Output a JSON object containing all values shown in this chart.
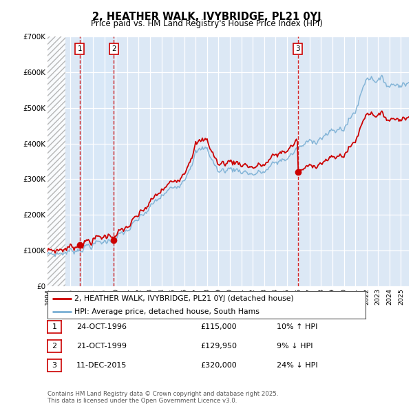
{
  "title_line1": "2, HEATHER WALK, IVYBRIDGE, PL21 0YJ",
  "title_line2": "Price paid vs. HM Land Registry's House Price Index (HPI)",
  "ylim": [
    0,
    700000
  ],
  "yticks": [
    0,
    100000,
    200000,
    300000,
    400000,
    500000,
    600000,
    700000
  ],
  "ytick_labels": [
    "£0",
    "£100K",
    "£200K",
    "£300K",
    "£400K",
    "£500K",
    "£600K",
    "£700K"
  ],
  "background_color": "#dce8f5",
  "hatch_color": "#c8c8c8",
  "transactions": [
    {
      "label": "1",
      "date_x": 1996.82,
      "price": 115000
    },
    {
      "label": "2",
      "date_x": 1999.82,
      "price": 129950
    },
    {
      "label": "3",
      "date_x": 2015.96,
      "price": 320000
    }
  ],
  "legend_entries": [
    {
      "label": "2, HEATHER WALK, IVYBRIDGE, PL21 0YJ (detached house)",
      "color": "#cc0000"
    },
    {
      "label": "HPI: Average price, detached house, South Hams",
      "color": "#7aafd4"
    }
  ],
  "table_entries": [
    {
      "num": "1",
      "date": "24-OCT-1996",
      "price": "£115,000",
      "hpi": "10% ↑ HPI"
    },
    {
      "num": "2",
      "date": "21-OCT-1999",
      "price": "£129,950",
      "hpi": "9% ↓ HPI"
    },
    {
      "num": "3",
      "date": "11-DEC-2015",
      "price": "£320,000",
      "hpi": "24% ↓ HPI"
    }
  ],
  "footnote": "Contains HM Land Registry data © Crown copyright and database right 2025.\nThis data is licensed under the Open Government Licence v3.0.",
  "hpi_color": "#7aafd4",
  "price_color": "#cc0000",
  "vline_color": "#cc0000",
  "box_color": "#cc0000",
  "highlight_color": "#d8e8f8",
  "xlim_start": 1994.0,
  "xlim_end": 2025.7,
  "hatch_end": 1995.6
}
